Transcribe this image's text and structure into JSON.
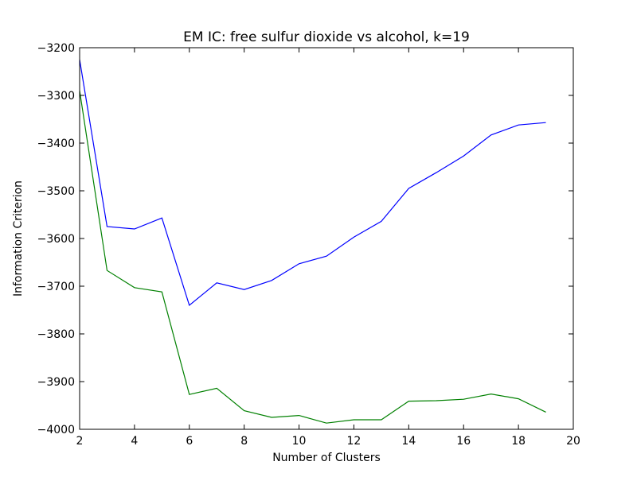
{
  "chart_data": {
    "type": "line",
    "title": "EM IC: free sulfur dioxide vs alcohol, k=19",
    "xlabel": "Number of Clusters",
    "ylabel": "Information Criterion",
    "xlim": [
      2,
      20
    ],
    "ylim": [
      -4000,
      -3200
    ],
    "xticks": [
      2,
      4,
      6,
      8,
      10,
      12,
      14,
      16,
      18,
      20
    ],
    "yticks": [
      -4000,
      -3900,
      -3800,
      -3700,
      -3600,
      -3500,
      -3400,
      -3300,
      -3200
    ],
    "xtick_labels": [
      "2",
      "4",
      "6",
      "8",
      "10",
      "12",
      "14",
      "16",
      "18",
      "20"
    ],
    "ytick_labels": [
      "−4000",
      "−3900",
      "−3800",
      "−3700",
      "−3600",
      "−3500",
      "−3400",
      "−3300",
      "−3200"
    ],
    "grid": false,
    "x": [
      2,
      3,
      4,
      5,
      6,
      7,
      8,
      9,
      10,
      11,
      12,
      13,
      14,
      15,
      16,
      17,
      18,
      19
    ],
    "series": [
      {
        "color": "#0000ff",
        "values": [
          -3225,
          -3575,
          -3580,
          -3557,
          -3740,
          -3693,
          -3707,
          -3688,
          -3653,
          -3637,
          -3597,
          -3564,
          -3495,
          -3462,
          -3427,
          -3383,
          -3362,
          -3357
        ]
      },
      {
        "color": "#008000",
        "values": [
          -3290,
          -3667,
          -3703,
          -3712,
          -3927,
          -3914,
          -3961,
          -3975,
          -3971,
          -3987,
          -3980,
          -3980,
          -3941,
          -3940,
          -3937,
          -3926,
          -3936,
          -3964
        ]
      }
    ]
  }
}
